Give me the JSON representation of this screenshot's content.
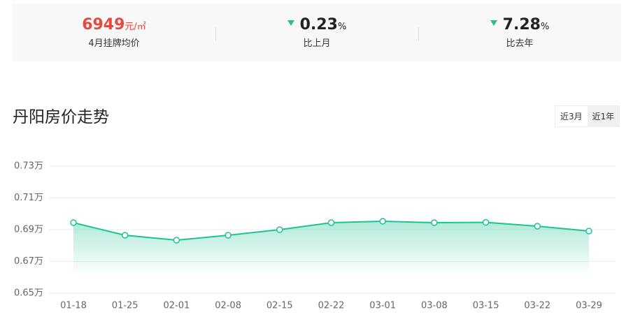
{
  "stats": [
    {
      "value": "6949",
      "unit": "元/㎡",
      "label": "4月挂牌均价"
    },
    {
      "value": "0.23",
      "unit": "%",
      "label": "比上月"
    },
    {
      "value": "7.28",
      "unit": "%",
      "label": "比去年"
    }
  ],
  "section_title": "丹阳房价走势",
  "range_buttons": [
    "近3月",
    "近1年"
  ],
  "chart_data": {
    "type": "line",
    "categories": [
      "01-18",
      "01-25",
      "02-01",
      "02-08",
      "02-15",
      "02-22",
      "03-01",
      "03-08",
      "03-15",
      "03-22",
      "03-29"
    ],
    "values": [
      0.6944,
      0.6865,
      0.6834,
      0.6865,
      0.69,
      0.6944,
      0.6953,
      0.6944,
      0.6946,
      0.6922,
      0.6891
    ],
    "color": "#1cc493",
    "ylim": [
      0.65,
      0.73
    ],
    "yticks": [
      {
        "value": 0.65,
        "label": "0.65万"
      },
      {
        "value": 0.67,
        "label": "0.67万"
      },
      {
        "value": 0.69,
        "label": "0.69万"
      },
      {
        "value": 0.71,
        "label": "0.71万"
      },
      {
        "value": 0.73,
        "label": "0.73万"
      }
    ],
    "grid": true
  }
}
